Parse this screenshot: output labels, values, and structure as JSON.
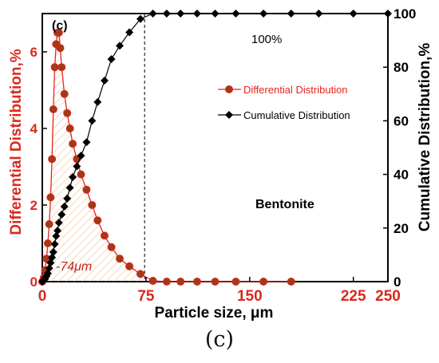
{
  "caption": "(c)",
  "chart_data": {
    "type": "scatter",
    "panel_label": "(c)",
    "xlabel": "Particle size, μm",
    "ylabel_left": "Differential Distribution,%",
    "ylabel_right": "Cumulative Distribution,%",
    "xlim": [
      0,
      250
    ],
    "xticks": [
      0,
      75,
      150,
      225,
      250
    ],
    "ylim_left": [
      0,
      7
    ],
    "yticks_left": [
      0,
      2,
      4,
      6
    ],
    "ylim_right": [
      0,
      100
    ],
    "yticks_right": [
      0,
      20,
      40,
      60,
      80,
      100
    ],
    "grid": false,
    "legend_position": "center-right",
    "annotations": {
      "percent": "100%",
      "material": "Bentonite",
      "fraction": "-74μm",
      "cutoff_x": 74
    },
    "series": [
      {
        "name": "Differential Distribution",
        "axis": "left",
        "marker": "circle",
        "color": "#e3261c",
        "marker_color": "#9e3b1a",
        "x": [
          0,
          1,
          2,
          3,
          4,
          5,
          6,
          7,
          8,
          9,
          10,
          11,
          12,
          13,
          14,
          16,
          18,
          20,
          22,
          25,
          28,
          32,
          36,
          40,
          45,
          50,
          56,
          63,
          71,
          80,
          90,
          100,
          112,
          125,
          140,
          160,
          180
        ],
        "y": [
          0.0,
          0.1,
          0.3,
          0.6,
          1.0,
          1.5,
          2.2,
          3.2,
          4.5,
          5.6,
          6.2,
          6.5,
          6.5,
          6.1,
          5.6,
          4.9,
          4.4,
          4.0,
          3.6,
          3.2,
          2.8,
          2.4,
          2.0,
          1.6,
          1.2,
          0.9,
          0.6,
          0.4,
          0.2,
          0.02,
          0.0,
          0.0,
          0.0,
          0.0,
          0.0,
          0.0,
          0.0
        ]
      },
      {
        "name": "Cumulative Distribution",
        "axis": "right",
        "marker": "diamond",
        "color": "#000000",
        "marker_color": "#000000",
        "x": [
          0,
          1,
          2,
          3,
          4,
          5,
          6,
          7,
          8,
          9,
          10,
          11,
          12,
          14,
          16,
          18,
          20,
          22,
          25,
          28,
          32,
          36,
          40,
          45,
          50,
          56,
          63,
          71,
          80,
          90,
          100,
          112,
          125,
          140,
          160,
          180,
          200,
          225,
          250
        ],
        "y": [
          0,
          0.5,
          1,
          2,
          3,
          5,
          7,
          9,
          11,
          14,
          17,
          19,
          22,
          25,
          28,
          31,
          35,
          39,
          43,
          47,
          52,
          60,
          67,
          75,
          83,
          88,
          93,
          98,
          100,
          100,
          100,
          100,
          100,
          100,
          100,
          100,
          100,
          100,
          100
        ]
      }
    ]
  }
}
